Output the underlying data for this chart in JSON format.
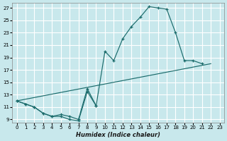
{
  "xlabel": "Humidex (Indice chaleur)",
  "bg_color": "#c8e8ec",
  "grid_color": "#ffffff",
  "line_color": "#1a6b6b",
  "xlim": [
    -0.5,
    23.5
  ],
  "ylim": [
    8.5,
    27.8
  ],
  "xticks": [
    0,
    1,
    2,
    3,
    4,
    5,
    6,
    7,
    8,
    9,
    10,
    11,
    12,
    13,
    14,
    15,
    16,
    17,
    18,
    19,
    20,
    21,
    22,
    23
  ],
  "yticks": [
    9,
    11,
    13,
    15,
    17,
    19,
    21,
    23,
    25,
    27
  ],
  "line1_x": [
    0,
    1,
    2,
    3,
    4,
    5,
    6,
    7,
    8,
    9,
    10,
    11,
    12,
    13,
    14,
    15,
    16,
    17,
    18,
    19,
    20,
    21
  ],
  "line1_y": [
    12,
    11.5,
    11,
    10,
    9.5,
    9.5,
    9.0,
    8.8,
    13.5,
    11.2,
    20.0,
    18.5,
    22.0,
    24.0,
    25.5,
    27.2,
    27.0,
    26.8,
    23.0,
    18.5,
    18.5,
    18.0
  ],
  "line2_x": [
    0,
    1,
    2,
    3,
    4,
    5,
    6,
    7,
    8,
    9
  ],
  "line2_y": [
    12,
    11.5,
    11,
    10.0,
    9.5,
    9.8,
    9.5,
    9.0,
    14.0,
    11.2
  ],
  "line3_x": [
    0,
    22
  ],
  "line3_y": [
    12,
    18.0
  ]
}
